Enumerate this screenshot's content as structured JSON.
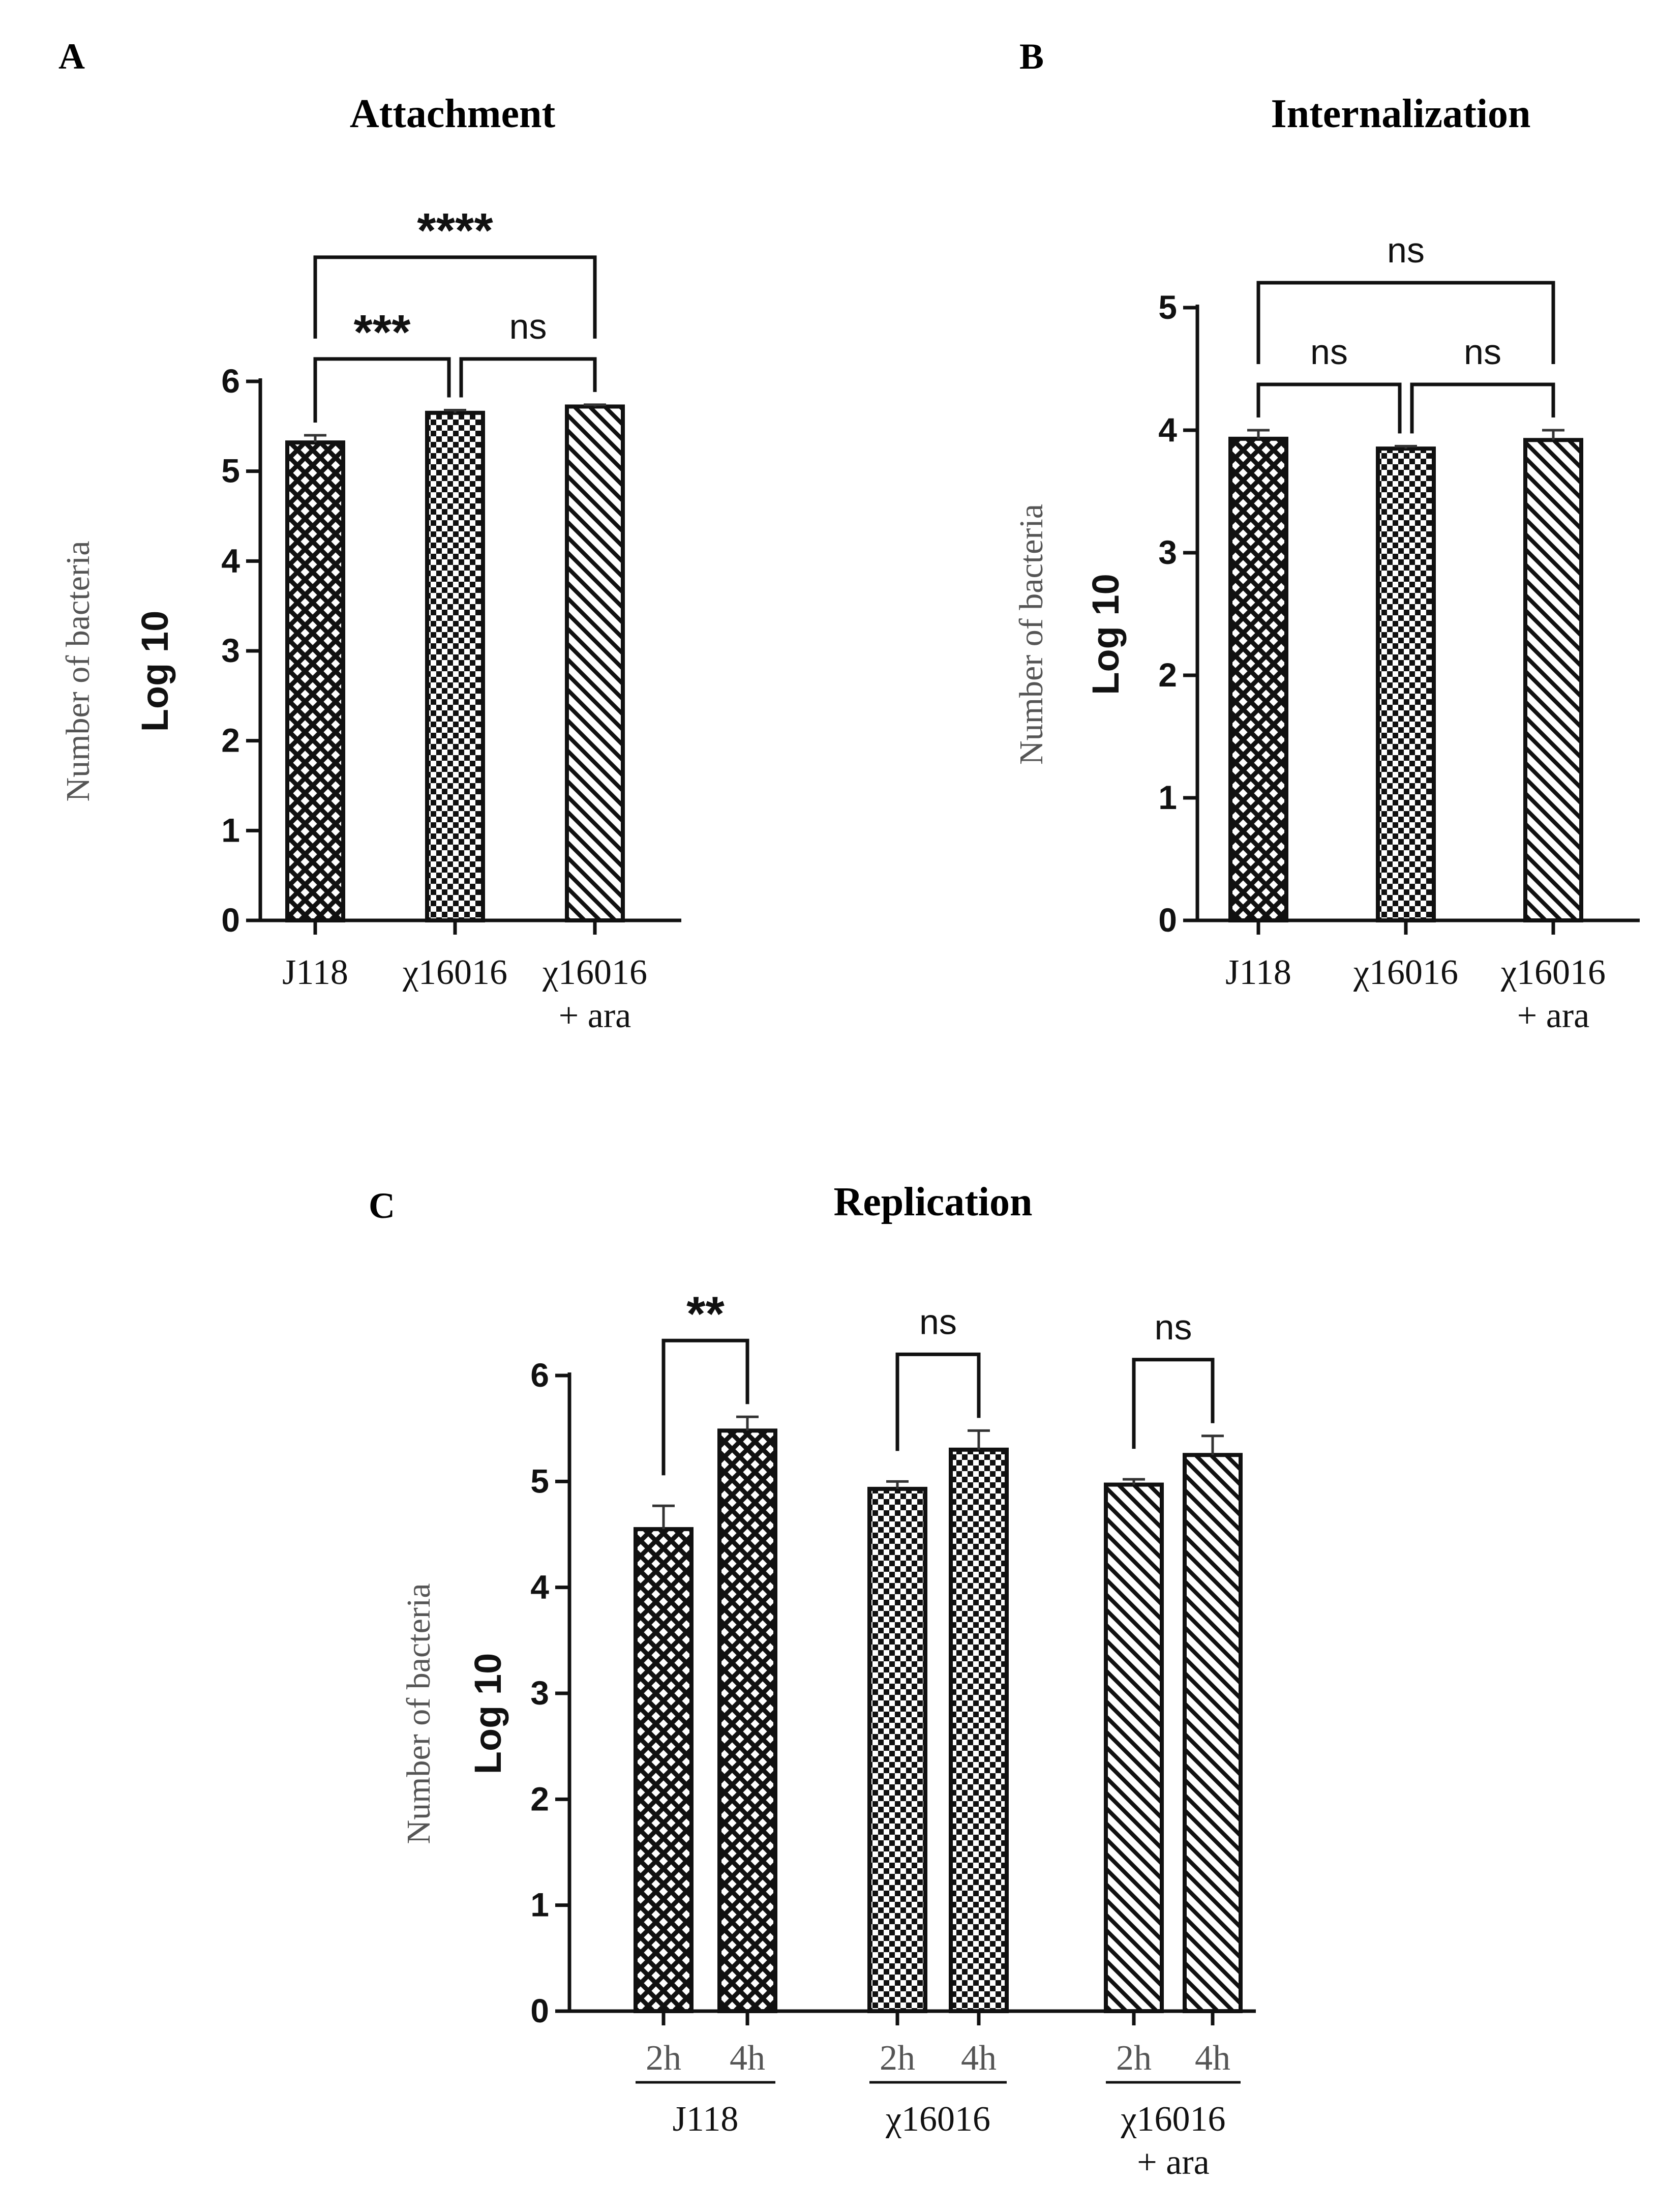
{
  "figure": {
    "panels": [
      {
        "key": "A",
        "label": "A",
        "title": "Attachment"
      },
      {
        "key": "B",
        "label": "B",
        "title": "Internalization"
      },
      {
        "key": "C",
        "label": "C",
        "title": "Replication"
      }
    ]
  },
  "chart_data": [
    {
      "type": "bar",
      "panel": "A",
      "title": "Attachment",
      "ylabel_top": "Number of bacteria",
      "ylabel_bottom": "Log 10",
      "ylim": [
        0,
        6
      ],
      "yticks": [
        0,
        1,
        2,
        3,
        4,
        5,
        6
      ],
      "categories": [
        [
          "J118"
        ],
        [
          "χ16016"
        ],
        [
          "χ16016",
          "+ ara"
        ]
      ],
      "values": [
        5.32,
        5.65,
        5.72
      ],
      "errors": [
        0.08,
        0.03,
        0.02
      ],
      "patterns": [
        "crosshatch",
        "checker",
        "diagonal"
      ],
      "significance": [
        {
          "from": 0,
          "to": 1,
          "label": "***",
          "level": 1
        },
        {
          "from": 1,
          "to": 2,
          "label": "ns",
          "level": 1
        },
        {
          "from": 0,
          "to": 2,
          "label": "****",
          "level": 2
        }
      ],
      "grid": false,
      "legend": "none"
    },
    {
      "type": "bar",
      "panel": "B",
      "title": "Internalization",
      "ylabel_top": "Number of bacteria",
      "ylabel_bottom": "Log 10",
      "ylim": [
        0,
        5
      ],
      "yticks": [
        0,
        1,
        2,
        3,
        4,
        5
      ],
      "categories": [
        [
          "J118"
        ],
        [
          "χ16016"
        ],
        [
          "χ16016",
          "+ ara"
        ]
      ],
      "values": [
        3.93,
        3.85,
        3.92
      ],
      "errors": [
        0.07,
        0.02,
        0.08
      ],
      "patterns": [
        "crosshatch",
        "checker",
        "diagonal"
      ],
      "significance": [
        {
          "from": 0,
          "to": 1,
          "label": "ns",
          "level": 1
        },
        {
          "from": 1,
          "to": 2,
          "label": "ns",
          "level": 1
        },
        {
          "from": 0,
          "to": 2,
          "label": "ns",
          "level": 2
        }
      ],
      "grid": false,
      "legend": "none"
    },
    {
      "type": "bar",
      "panel": "C",
      "title": "Replication",
      "ylabel_top": "Number of bacteria",
      "ylabel_bottom": "Log 10",
      "ylim": [
        0,
        6
      ],
      "yticks": [
        0,
        1,
        2,
        3,
        4,
        5,
        6
      ],
      "groups": [
        {
          "label": [
            "J118"
          ],
          "pattern": "crosshatch",
          "bars": [
            {
              "x": "2h",
              "value": 4.55,
              "error": 0.22
            },
            {
              "x": "4h",
              "value": 5.48,
              "error": 0.13
            }
          ],
          "significance": "**"
        },
        {
          "label": [
            "χ16016"
          ],
          "pattern": "checker",
          "bars": [
            {
              "x": "2h",
              "value": 4.93,
              "error": 0.07
            },
            {
              "x": "4h",
              "value": 5.3,
              "error": 0.18
            }
          ],
          "significance": "ns"
        },
        {
          "label": [
            "χ16016",
            "+ ara"
          ],
          "pattern": "diagonal",
          "bars": [
            {
              "x": "2h",
              "value": 4.97,
              "error": 0.05
            },
            {
              "x": "4h",
              "value": 5.25,
              "error": 0.18
            }
          ],
          "significance": "ns"
        }
      ],
      "grid": false,
      "legend": "none"
    }
  ]
}
